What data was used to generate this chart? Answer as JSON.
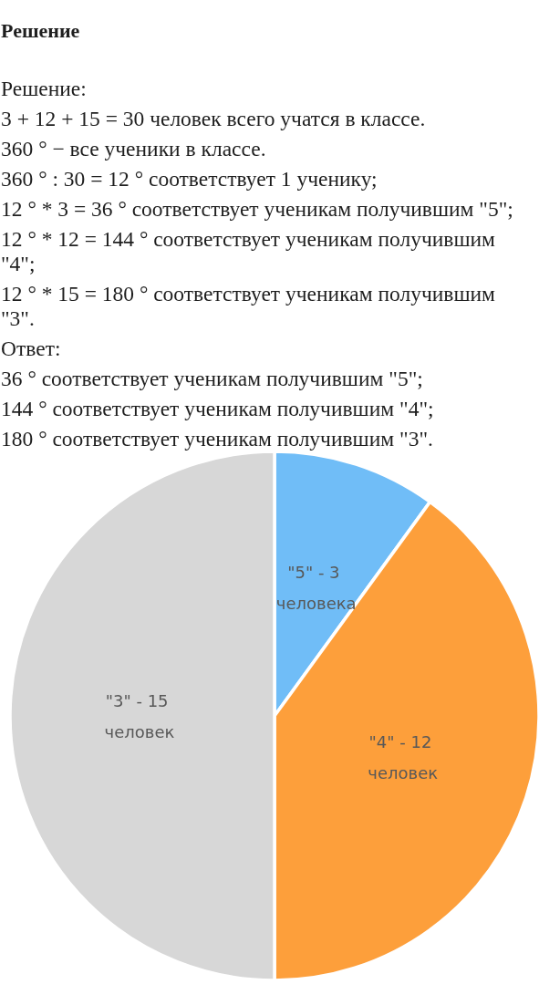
{
  "chart_data": {
    "type": "pie",
    "title": "Решение",
    "annotations": [
      "Решение:",
      "3 + 12 + 15 = 30 человек всего учатся в классе.",
      "360 ° − все ученики в классе.",
      "360 ° : 30 = 12 ° соответствует 1 ученику;",
      "12 ° * 3 = 36 ° соответствует ученикам получившим \"5\";",
      "12 ° * 12 = 144 ° соответствует ученикам получившим \"4\";",
      "12 ° * 15 = 180 ° соответствует ученикам получившим \"3\".",
      "Ответ:",
      "36 ° соответствует ученикам получившим \"5\";",
      "144 ° соответствует ученикам получившим \"4\";",
      "180 ° соответствует ученикам получившим \"3\"."
    ],
    "categories": [
      "\"5\"",
      "\"4\"",
      "\"3\""
    ],
    "values": [
      3,
      12,
      15
    ],
    "value_labels": [
      "3 человека",
      "12 человек",
      "15 человек"
    ],
    "colors": [
      "#70bdf7",
      "#fd9f3b",
      "#d7d7d7"
    ]
  }
}
